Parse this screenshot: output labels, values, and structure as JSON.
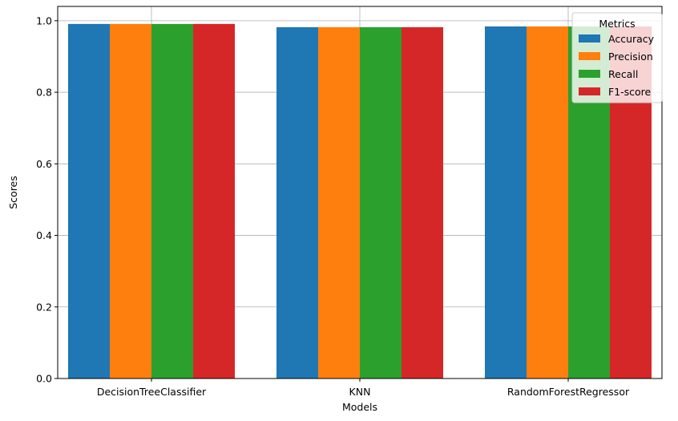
{
  "chart_data": {
    "type": "bar",
    "xlabel": "Models",
    "ylabel": "Scores",
    "categories": [
      "DecisionTreeClassifier",
      "KNN",
      "RandomForestRegressor"
    ],
    "series": [
      {
        "name": "Accuracy",
        "color": "#1f77b4",
        "values": [
          0.991,
          0.982,
          0.984
        ]
      },
      {
        "name": "Precision",
        "color": "#ff7f0e",
        "values": [
          0.991,
          0.982,
          0.984
        ]
      },
      {
        "name": "Recall",
        "color": "#2ca02c",
        "values": [
          0.991,
          0.982,
          0.984
        ]
      },
      {
        "name": "F1-score",
        "color": "#d62728",
        "values": [
          0.991,
          0.982,
          0.984
        ]
      }
    ],
    "ylim": [
      0,
      1.04
    ],
    "yticks": [
      "0.0",
      "0.2",
      "0.4",
      "0.6",
      "0.8",
      "1.0"
    ],
    "grid": true,
    "legend": {
      "title": "Metrics",
      "placement": "top-right"
    }
  }
}
